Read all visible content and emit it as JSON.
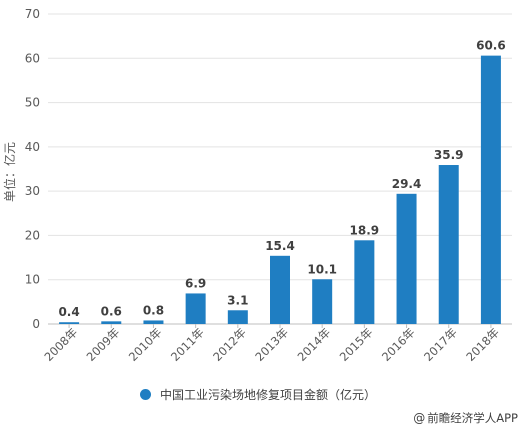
{
  "chart_data": {
    "type": "bar",
    "categories": [
      "2008年",
      "2009年",
      "2010年",
      "2011年",
      "2012年",
      "2013年",
      "2014年",
      "2015年",
      "2016年",
      "2017年",
      "2018年"
    ],
    "series": [
      {
        "name": "中国工业污染场地修复项目金额（亿元）",
        "values": [
          0.4,
          0.6,
          0.8,
          6.9,
          3.1,
          15.4,
          10.1,
          18.9,
          29.4,
          35.9,
          60.6
        ]
      }
    ],
    "data_labels": [
      "0.4",
      "0.6",
      "0.8",
      "6.9",
      "3.1",
      "15.4",
      "10.1",
      "18.9",
      "29.4",
      "35.9",
      "60.6"
    ],
    "yticks": [
      "0",
      "10",
      "20",
      "30",
      "40",
      "50",
      "60",
      "70"
    ],
    "ylim": [
      0,
      70
    ],
    "ylabel": "单位：亿元",
    "xlabel": "",
    "title": "",
    "grid": true,
    "legend_position": "bottom",
    "bar_color": "#1F7EC2"
  },
  "legend": {
    "label": "中国工业污染场地修复项目金额（亿元）"
  },
  "credit": {
    "mark": "@",
    "text": "前瞻经济学人APP"
  }
}
